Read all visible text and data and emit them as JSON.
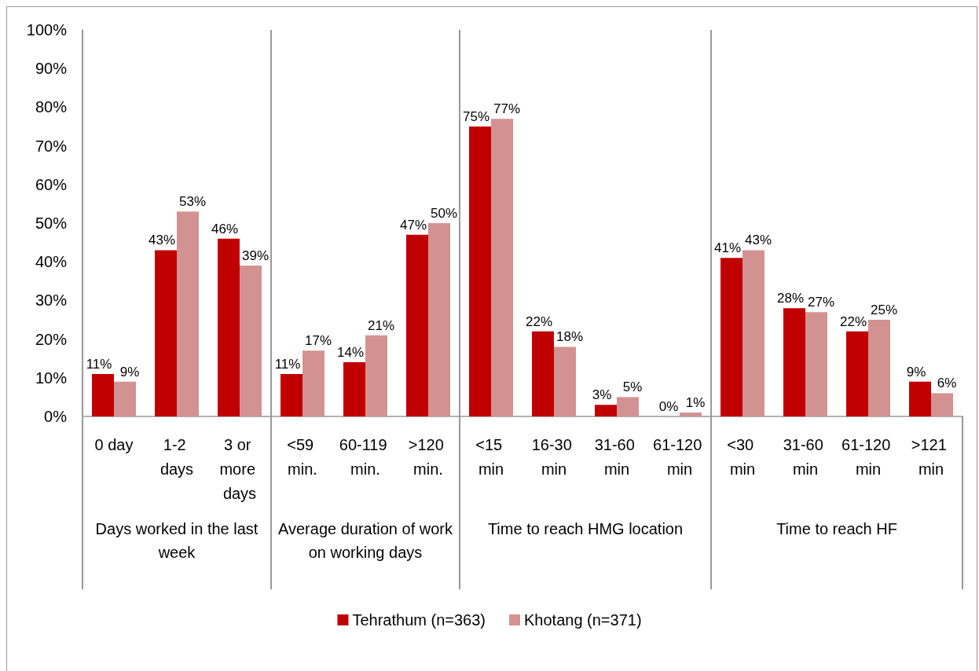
{
  "chart_data": [
    {
      "type": "bar",
      "xlabel": "Days worked in the last week",
      "categories": [
        "0 day",
        "1-2 days",
        "3 or more days"
      ],
      "ylim": [
        0,
        100
      ],
      "yticks": [
        {
          "value": 0,
          "label": "0%"
        },
        {
          "value": 10,
          "label": "10%"
        },
        {
          "value": 20,
          "label": "20%"
        },
        {
          "value": 30,
          "label": "30%"
        },
        {
          "value": 40,
          "label": "40%"
        },
        {
          "value": 50,
          "label": "50%"
        },
        {
          "value": 60,
          "label": "60%"
        },
        {
          "value": 70,
          "label": "70%"
        },
        {
          "value": 80,
          "label": "80%"
        },
        {
          "value": 90,
          "label": "90%"
        },
        {
          "value": 100,
          "label": "100%"
        }
      ],
      "grid": false,
      "legend": false,
      "series": [
        {
          "color": "#c00000",
          "values": [
            11,
            43,
            46
          ],
          "value_labels": [
            "11%",
            "43%",
            "46%"
          ]
        },
        {
          "color": "#d39292",
          "values": [
            9,
            53,
            39
          ],
          "value_labels": [
            "9%",
            "53%",
            "39%"
          ]
        }
      ]
    },
    {
      "type": "bar",
      "xlabel": "Average duration of work on working days",
      "categories": [
        "<59 min.",
        "60-119 min.",
        ">120 min."
      ],
      "ylim": [
        0,
        100
      ],
      "tick_labels": "x",
      "grid": false,
      "legend": false,
      "series": [
        {
          "color": "#c00000",
          "values": [
            11,
            14,
            47
          ],
          "value_labels": [
            "11%",
            "14%",
            "47%"
          ]
        },
        {
          "color": "#d39292",
          "values": [
            17,
            21,
            50
          ],
          "value_labels": [
            "17%",
            "21%",
            "50%"
          ]
        }
      ]
    },
    {
      "type": "bar",
      "xlabel": "Time to reach HMG location",
      "categories": [
        "<15 min",
        "16-30 min",
        "31-60 min",
        "61-120 min"
      ],
      "ylim": [
        0,
        100
      ],
      "tick_labels": "x",
      "grid": false,
      "legend": false,
      "series": [
        {
          "color": "#c00000",
          "values": [
            75,
            22,
            3,
            0
          ],
          "value_labels": [
            "75%",
            "22%",
            "3%",
            "0%"
          ]
        },
        {
          "color": "#d39292",
          "values": [
            77,
            18,
            5,
            1
          ],
          "value_labels": [
            "77%",
            "18%",
            "5%",
            "1%"
          ]
        }
      ]
    },
    {
      "type": "bar",
      "xlabel": "Time to reach HF",
      "categories": [
        "<30 min",
        "31-60 min",
        "61-120 min",
        ">121 min"
      ],
      "ylim": [
        0,
        100
      ],
      "tick_labels": "x",
      "grid": false,
      "legend": "bottom",
      "series": [
        {
          "name": "Tehrathum (n=363)",
          "color": "#c00000",
          "values": [
            41,
            28,
            22,
            9
          ],
          "value_labels": [
            "41%",
            "28%",
            "22%",
            "9%"
          ]
        },
        {
          "name": "Khotang (n=371)",
          "color": "#d39292",
          "values": [
            43,
            27,
            25,
            6
          ],
          "value_labels": [
            "43%",
            "27%",
            "25%",
            "6%"
          ]
        }
      ]
    }
  ]
}
